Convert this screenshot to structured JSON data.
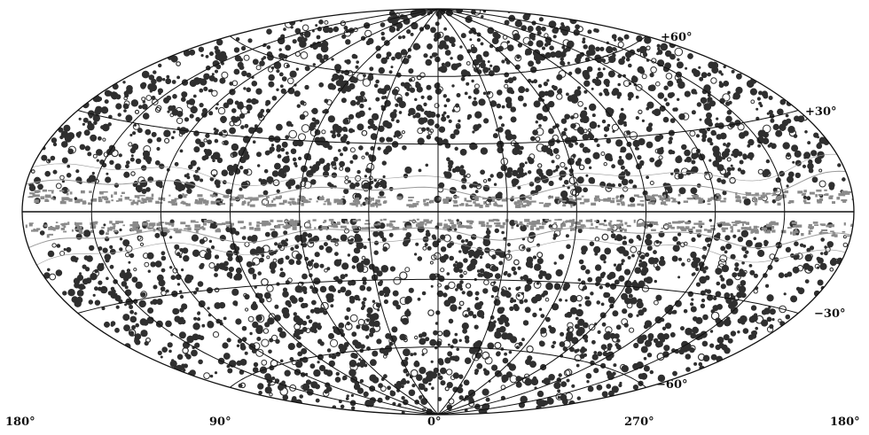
{
  "projection": "aitoff",
  "colors": {
    "background": "#ffffff",
    "source_fill": "#2f2f2f",
    "plane_fill": "#8a8a8a",
    "grid": "#111111",
    "contour": "#9a9a9a"
  },
  "latitude_labels": {
    "p60": "+60°",
    "p30": "+30°",
    "m30": "−30°",
    "m60": "−60°"
  },
  "longitude_labels": {
    "l180_left": "180°",
    "l90": "90°",
    "l0": "0°",
    "l270": "270°",
    "l180_right": "180°"
  }
}
